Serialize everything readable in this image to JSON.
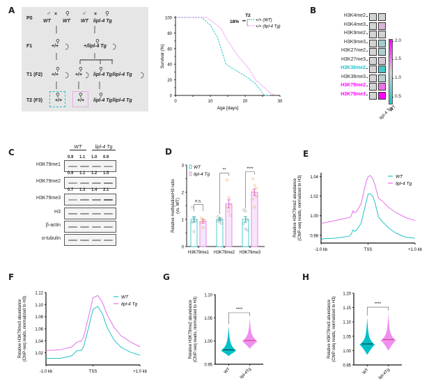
{
  "panels": {
    "A": {
      "label": "A",
      "pedigree": {
        "rows": [
          "P0",
          "F1",
          "T1 (F2)",
          "T2 (F3)"
        ],
        "p0": {
          "left_cross": [
            "WT",
            "×",
            "WT"
          ],
          "right_cross": [
            "WT",
            "×",
            "lipl-4 Tg"
          ]
        },
        "f1": {
          "left": "+/+",
          "right": "+/lipl-4 Tg"
        },
        "t1": {
          "left": "+/+",
          "mid": "+/+",
          "right": "lipl-4 Tg/lipl-4 Tg"
        },
        "t2": {
          "left": "+/+",
          "mid": "+/+",
          "right": "lipl-4 Tg/lipl-4 Tg"
        },
        "symbols": {
          "male": "♂",
          "hermaphrodite": "⚲"
        }
      },
      "colors": {
        "wt": "#1fc3c8",
        "tg": "#e070e8",
        "box_bg": "#e6e6e6"
      }
    },
    "B": {
      "label": "B",
      "rows": [
        {
          "mark": "H3K4me2",
          "wt": 1.0,
          "tg": 1.0,
          "highlight": null
        },
        {
          "mark": "H3K4me3",
          "wt": 1.0,
          "tg": 1.15,
          "highlight": null
        },
        {
          "mark": "H3K9me2",
          "wt": 1.0,
          "tg": 1.0,
          "highlight": null
        },
        {
          "mark": "H3K9me3",
          "wt": 1.0,
          "tg": 0.8,
          "highlight": null
        },
        {
          "mark": "H3K27me2",
          "wt": 1.0,
          "tg": 0.85,
          "highlight": null
        },
        {
          "mark": "H3K27me3",
          "wt": 1.0,
          "tg": 1.05,
          "highlight": null
        },
        {
          "mark": "H3K36me2",
          "wt": 1.0,
          "tg": 0.45,
          "highlight": "#1fc3c8"
        },
        {
          "mark": "H3K36me3",
          "wt": 1.0,
          "tg": 0.9,
          "highlight": null
        },
        {
          "mark": "H3K79me2",
          "wt": 1.0,
          "tg": 1.45,
          "highlight": "#ff00ff"
        },
        {
          "mark": "H3K79me3",
          "wt": 1.0,
          "tg": 2.0,
          "highlight": "#ff00ff"
        }
      ],
      "columns": [
        "WT",
        "lipl-4 Tg"
      ],
      "colorbar": {
        "ticks": [
          "2.0",
          "1.5",
          "1.0",
          "0.5"
        ],
        "min": 0.3,
        "max": 2.0,
        "low_color": "#1fc3c8",
        "mid_color": "#d3d3d3",
        "high_color": "#ff00ff"
      }
    },
    "C": {
      "label": "C",
      "groups": [
        "WT",
        "lipl-4 Tg"
      ],
      "blots": [
        {
          "name": "H3K79me1",
          "quant": [
            "0.9",
            "1.1",
            "1.0",
            "0.9"
          ]
        },
        {
          "name": "H3K79me2",
          "quant": [
            "0.9",
            "1.1",
            "1.2",
            "1.5"
          ]
        },
        {
          "name": "H3K79me3",
          "quant": [
            "0.7",
            "1.3",
            "1.4",
            "2.1"
          ]
        },
        {
          "name": "H3",
          "quant": []
        },
        {
          "name": "β-actin",
          "quant": []
        },
        {
          "name": "α-tubulin",
          "quant": []
        }
      ]
    },
    "D": {
      "label": "D"
    },
    "E": {
      "label": "E"
    },
    "F": {
      "label": "F"
    },
    "G": {
      "label": "G"
    },
    "H": {
      "label": "H"
    }
  },
  "chart_data": [
    {
      "id": "A-survival",
      "type": "line",
      "title": "",
      "xlabel": "Age [days]",
      "ylabel": "Survival (%)",
      "xlim": [
        0,
        30
      ],
      "ylim": [
        0,
        100
      ],
      "xticks": [
        "0",
        "10",
        "20",
        "30"
      ],
      "yticks": [
        "0",
        "20",
        "40",
        "60",
        "80",
        "100"
      ],
      "legend": {
        "title": "T2",
        "placement": "top-right",
        "annotation": "18% **"
      },
      "series": [
        {
          "name": "+/+ (WT)",
          "color": "#1fc3c8",
          "style": "dashed",
          "x": [
            0,
            7.5,
            10,
            12,
            14.5,
            17,
            20,
            23,
            25,
            25.5,
            27
          ],
          "y": [
            100,
            100,
            90,
            75,
            40,
            33,
            25,
            15,
            3,
            0,
            0
          ]
        },
        {
          "name": "+/+ (lipl-4 Tg)",
          "color": "#e070e8",
          "style": "dotted",
          "x": [
            0,
            9,
            13,
            15,
            18,
            21,
            23,
            25,
            27,
            28.5
          ],
          "y": [
            100,
            100,
            86,
            70,
            50,
            35,
            20,
            12,
            4,
            0
          ]
        }
      ]
    },
    {
      "id": "D-bar",
      "type": "bar",
      "title": "",
      "xlabel": "",
      "ylabel": "Relative methylation/H3 ratio (vs. WT)",
      "ylim": [
        0,
        3
      ],
      "yticks": [
        "0",
        "1",
        "2",
        "3"
      ],
      "categories": [
        "H3K79me1",
        "H3K79me2",
        "H3K79me3"
      ],
      "legend": {
        "placement": "top-left",
        "entries": [
          "WT",
          "lipl-4 Tg"
        ]
      },
      "significance": [
        "n.s.",
        "**",
        "****"
      ],
      "series": [
        {
          "name": "WT",
          "color": "#1fc3c8",
          "values": [
            1.0,
            1.0,
            1.0
          ],
          "errors": [
            0.1,
            0.05,
            0.1
          ],
          "points": [
            [
              1.45,
              1.05,
              0.95,
              0.9,
              0.55
            ],
            [
              1.1,
              1.05,
              1.0,
              0.95,
              0.9,
              0.85
            ],
            [
              1.35,
              1.3,
              1.0,
              0.85,
              0.65,
              0.6
            ]
          ]
        },
        {
          "name": "lipl-4 Tg",
          "color": "#e070e8",
          "values": [
            0.93,
            1.57,
            2.0
          ],
          "errors": [
            0.07,
            0.15,
            0.12
          ],
          "points": [
            [
              1.05,
              1.0,
              0.95,
              0.9,
              0.7
            ],
            [
              2.45,
              1.8,
              1.55,
              1.45,
              1.3,
              1.15
            ],
            [
              2.5,
              2.25,
              2.15,
              2.05,
              1.95,
              1.85,
              1.75,
              1.45
            ]
          ]
        }
      ]
    },
    {
      "id": "E-profile",
      "type": "line",
      "xlabel": "",
      "ylabel": "Relative H3K79me2 abundance (ChIP-seq reads, normalized to H3)",
      "xticks": [
        "-1.0 kb",
        "TSS",
        "+1.0 kb"
      ],
      "xlim": [
        -1,
        1
      ],
      "ylim": [
        0.972,
        1.044
      ],
      "yticks": [
        "0.98",
        "1.00",
        "1.02",
        "1.04"
      ],
      "legend": {
        "placement": "top-right",
        "entries": [
          "WT",
          "lipl-4 Tg"
        ]
      },
      "series": [
        {
          "name": "WT",
          "color": "#1fc3c8",
          "x": [
            -1,
            -0.95,
            -0.7,
            -0.4,
            -0.36,
            -0.32,
            -0.29,
            -0.25,
            -0.15,
            -0.05,
            0.0,
            0.05,
            0.1,
            0.15,
            0.22,
            0.3,
            0.45,
            0.6,
            0.8,
            1.0
          ],
          "y": [
            0.975,
            0.9765,
            0.977,
            0.979,
            0.981,
            0.9855,
            0.984,
            0.985,
            0.992,
            1.012,
            1.022,
            1.0225,
            1.02,
            1.013,
            0.999,
            0.994,
            0.987,
            0.982,
            0.978,
            0.977
          ]
        },
        {
          "name": "lipl-4 Tg",
          "color": "#e070e8",
          "x": [
            -1,
            -0.8,
            -0.6,
            -0.4,
            -0.36,
            -0.32,
            -0.29,
            -0.25,
            -0.15,
            -0.05,
            0.0,
            0.05,
            0.1,
            0.15,
            0.22,
            0.3,
            0.45,
            0.6,
            0.8,
            1.0
          ],
          "y": [
            0.992,
            0.994,
            0.996,
            0.998,
            0.9995,
            1.005,
            1.003,
            1.004,
            1.012,
            1.033,
            1.04,
            1.041,
            1.038,
            1.031,
            1.018,
            1.015,
            1.008,
            1.003,
            0.998,
            0.995
          ]
        }
      ]
    },
    {
      "id": "F-profile",
      "type": "line",
      "xlabel": "",
      "ylabel": "Relative H3K79me3 abundance (ChIP-seq reads, normalized to H3)",
      "xticks": [
        "-1.0 kb",
        "TSS",
        "+1.0 kb"
      ],
      "xlim": [
        -1,
        1
      ],
      "ylim": [
        1.0,
        1.12
      ],
      "yticks": [
        "1.02",
        "1.04",
        "1.06",
        "1.08",
        "1.10",
        "1.12"
      ],
      "legend": {
        "placement": "top-right",
        "entries": [
          "WT",
          "lipl-4 Tg"
        ]
      },
      "series": [
        {
          "name": "WT",
          "color": "#1fc3c8",
          "x": [
            -1,
            -0.7,
            -0.45,
            -0.35,
            -0.3,
            -0.25,
            -0.2,
            -0.1,
            0.0,
            0.1,
            0.2,
            0.3,
            0.45,
            0.6,
            0.8,
            1.0
          ],
          "y": [
            1.011,
            1.011,
            1.015,
            1.023,
            1.024,
            1.024,
            1.03,
            1.06,
            1.092,
            1.097,
            1.085,
            1.062,
            1.041,
            1.029,
            1.021,
            1.016
          ]
        },
        {
          "name": "lipl-4 Tg",
          "color": "#e070e8",
          "x": [
            -1,
            -0.7,
            -0.45,
            -0.35,
            -0.3,
            -0.25,
            -0.2,
            -0.1,
            0.0,
            0.1,
            0.2,
            0.3,
            0.45,
            0.6,
            0.8,
            1.0
          ],
          "y": [
            1.024,
            1.025,
            1.03,
            1.037,
            1.039,
            1.039,
            1.046,
            1.078,
            1.111,
            1.115,
            1.104,
            1.083,
            1.062,
            1.048,
            1.038,
            1.03
          ]
        }
      ]
    },
    {
      "id": "G-violin",
      "type": "violin",
      "xlabel": "",
      "ylabel": "Relative H3K79me2 abundance (ChIP-seq reads, normalized to H3)",
      "categories": [
        "WT",
        "lipl-4Tg"
      ],
      "ylim": [
        0.95,
        1.1
      ],
      "yticks": [
        "0.95",
        "1.00",
        "1.05",
        "1.10"
      ],
      "significance": "****",
      "series": [
        {
          "name": "WT",
          "color": "#00c0c8",
          "median": 0.981,
          "min": 0.967,
          "max": 1.032
        },
        {
          "name": "lipl-4Tg",
          "color": "#ee90f0",
          "median": 1.001,
          "min": 0.983,
          "max": 1.049
        }
      ]
    },
    {
      "id": "H-violin",
      "type": "violin",
      "xlabel": "",
      "ylabel": "Relative H3K79me3 abundance (ChIP-seq reads, normalized to H3)",
      "categories": [
        "WT",
        "lipl-4Tg"
      ],
      "ylim": [
        0.95,
        1.2
      ],
      "yticks": [
        "0.95",
        "1.00",
        "1.05",
        "1.10",
        "1.15",
        "1.20"
      ],
      "significance": "****",
      "series": [
        {
          "name": "WT",
          "color": "#00c0c8",
          "median": 1.023,
          "min": 0.985,
          "max": 1.115
        },
        {
          "name": "lipl-4Tg",
          "color": "#ee90f0",
          "median": 1.038,
          "min": 1.0,
          "max": 1.132
        }
      ]
    }
  ]
}
